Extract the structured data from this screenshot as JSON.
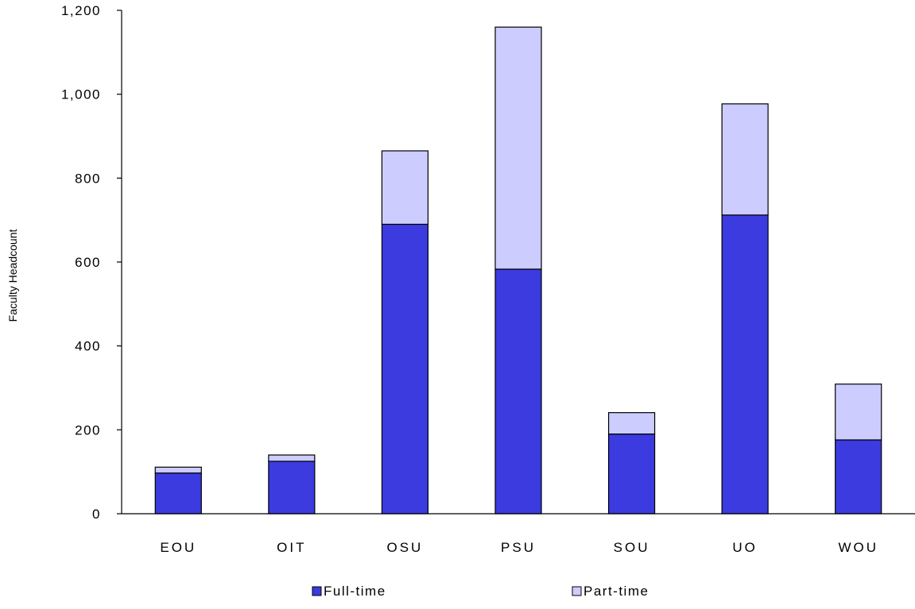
{
  "chart_data": {
    "type": "bar",
    "stacked": true,
    "title": "",
    "xlabel": "",
    "ylabel": "Faculty Headcount",
    "ylim": [
      0,
      1200
    ],
    "yticks": [
      0,
      200,
      400,
      600,
      800,
      1000,
      1200
    ],
    "ytick_labels": [
      "0",
      "200",
      "400",
      "600",
      "800",
      "1,000",
      "1,200"
    ],
    "categories": [
      "EOU",
      "OIT",
      "OSU",
      "PSU",
      "SOU",
      "UO",
      "WOU"
    ],
    "series": [
      {
        "name": "Full-time",
        "color": "#3b3be0",
        "values": [
          97,
          125,
          690,
          583,
          190,
          712,
          176
        ]
      },
      {
        "name": "Part-time",
        "color": "#ccccff",
        "values": [
          14,
          15,
          175,
          577,
          51,
          265,
          133
        ]
      }
    ],
    "grid": false,
    "legend": "bottom"
  }
}
